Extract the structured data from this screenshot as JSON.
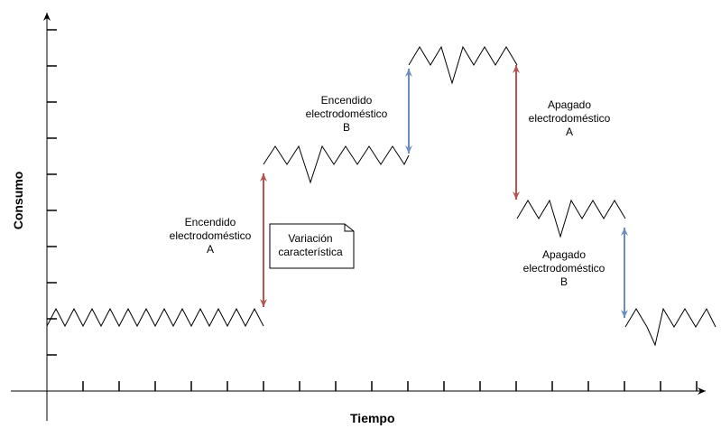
{
  "axes": {
    "y_title": "Consumo",
    "x_title": "Tiempo"
  },
  "annotations": {
    "on_a": [
      "Encendido",
      "electrodoméstico",
      "A"
    ],
    "on_b": [
      "Encendido",
      "electrodoméstico",
      "B"
    ],
    "off_a": [
      "Apagado",
      "electrodoméstico",
      "A"
    ],
    "off_b": [
      "Apagado",
      "electrodoméstico",
      "B"
    ]
  },
  "note": [
    "Variación",
    "característica"
  ],
  "colors": {
    "signal": "#000000",
    "arrow_red": "#B85450",
    "arrow_blue": "#6C8EBF",
    "axis": "#000000"
  }
}
